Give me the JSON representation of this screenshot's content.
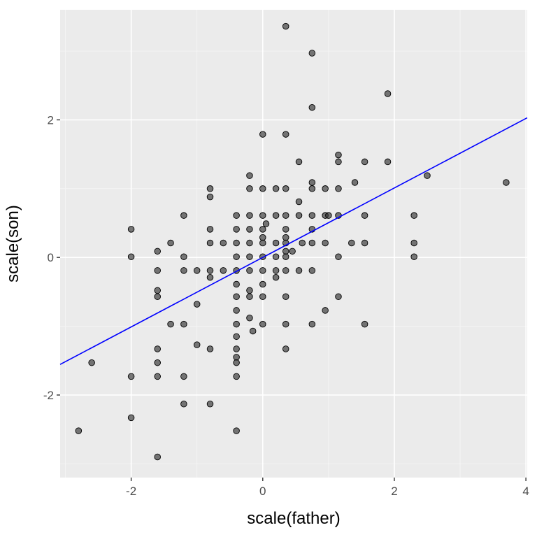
{
  "chart_data": {
    "type": "scatter",
    "title": "",
    "xlabel": "scale(father)",
    "ylabel": "scale(son)",
    "xlim": [
      -3.08,
      4.02
    ],
    "ylim": [
      -3.2,
      3.6
    ],
    "x_ticks": [
      -2,
      0,
      2,
      4
    ],
    "y_ticks": [
      -2,
      0,
      2
    ],
    "x_tick_labels": [
      "-2",
      "0",
      "2",
      "4"
    ],
    "y_tick_labels": [
      "-2",
      "0",
      "2"
    ],
    "grid": true,
    "legend": "none",
    "colors": {
      "panel_background": "#ebebeb",
      "grid_major": "#ffffff",
      "grid_minor": "#f5f5f5",
      "point_fill": "#333333",
      "point_opacity": 0.65,
      "point_stroke": "#000000",
      "fit_line": "#0000ff"
    },
    "fit_line": {
      "intercept": 0.0,
      "slope": 0.505
    },
    "series": [
      {
        "points": [
          [
            -2.8,
            -2.52
          ],
          [
            -2.6,
            -1.53
          ],
          [
            -2.0,
            0.41
          ],
          [
            -2.0,
            0.01
          ],
          [
            -2.0,
            -1.73
          ],
          [
            -2.0,
            -2.33
          ],
          [
            -1.6,
            0.09
          ],
          [
            -1.6,
            -0.19
          ],
          [
            -1.6,
            -0.48
          ],
          [
            -1.6,
            -0.57
          ],
          [
            -1.6,
            -1.33
          ],
          [
            -1.6,
            -1.53
          ],
          [
            -1.6,
            -1.73
          ],
          [
            -1.6,
            -2.9
          ],
          [
            -1.4,
            0.21
          ],
          [
            -1.4,
            -0.97
          ],
          [
            -1.2,
            0.61
          ],
          [
            -1.2,
            0.01
          ],
          [
            -1.2,
            -0.19
          ],
          [
            -1.2,
            -0.97
          ],
          [
            -1.2,
            -1.73
          ],
          [
            -1.2,
            -2.13
          ],
          [
            -1.0,
            -0.19
          ],
          [
            -1.0,
            -0.68
          ],
          [
            -1.0,
            -1.27
          ],
          [
            -0.8,
            1.0
          ],
          [
            -0.8,
            0.88
          ],
          [
            -0.8,
            0.41
          ],
          [
            -0.8,
            0.21
          ],
          [
            -0.8,
            -0.19
          ],
          [
            -0.8,
            -0.29
          ],
          [
            -0.8,
            -1.33
          ],
          [
            -0.8,
            -2.13
          ],
          [
            -0.6,
            0.21
          ],
          [
            -0.6,
            -0.19
          ],
          [
            -0.4,
            0.61
          ],
          [
            -0.4,
            0.41
          ],
          [
            -0.4,
            0.21
          ],
          [
            -0.4,
            0.01
          ],
          [
            -0.4,
            -0.19
          ],
          [
            -0.4,
            -0.39
          ],
          [
            -0.4,
            -0.57
          ],
          [
            -0.4,
            -0.77
          ],
          [
            -0.4,
            -0.97
          ],
          [
            -0.4,
            -1.15
          ],
          [
            -0.4,
            -1.33
          ],
          [
            -0.4,
            -1.45
          ],
          [
            -0.4,
            -1.53
          ],
          [
            -0.4,
            -1.73
          ],
          [
            -0.4,
            -2.52
          ],
          [
            -0.2,
            1.19
          ],
          [
            -0.2,
            1.0
          ],
          [
            -0.2,
            0.61
          ],
          [
            -0.2,
            0.41
          ],
          [
            -0.2,
            0.21
          ],
          [
            -0.2,
            0.01
          ],
          [
            -0.2,
            -0.19
          ],
          [
            -0.2,
            -0.48
          ],
          [
            -0.2,
            -0.57
          ],
          [
            -0.2,
            -0.88
          ],
          [
            -0.15,
            -1.07
          ],
          [
            0.0,
            1.79
          ],
          [
            0.0,
            1.0
          ],
          [
            0.0,
            0.61
          ],
          [
            0.0,
            0.41
          ],
          [
            0.0,
            0.29
          ],
          [
            0.0,
            0.21
          ],
          [
            0.0,
            0.01
          ],
          [
            0.0,
            -0.19
          ],
          [
            0.0,
            -0.39
          ],
          [
            0.0,
            -0.57
          ],
          [
            0.0,
            -0.97
          ],
          [
            0.05,
            0.49
          ],
          [
            0.2,
            1.0
          ],
          [
            0.2,
            0.61
          ],
          [
            0.2,
            0.21
          ],
          [
            0.2,
            0.01
          ],
          [
            0.2,
            -0.19
          ],
          [
            0.2,
            -0.29
          ],
          [
            0.35,
            3.36
          ],
          [
            0.35,
            1.79
          ],
          [
            0.35,
            1.0
          ],
          [
            0.35,
            0.61
          ],
          [
            0.35,
            0.41
          ],
          [
            0.35,
            0.29
          ],
          [
            0.35,
            0.21
          ],
          [
            0.35,
            0.09
          ],
          [
            0.35,
            0.01
          ],
          [
            0.35,
            -0.19
          ],
          [
            0.35,
            -0.57
          ],
          [
            0.35,
            -0.97
          ],
          [
            0.35,
            -1.33
          ],
          [
            0.45,
            0.09
          ],
          [
            0.55,
            1.39
          ],
          [
            0.55,
            0.81
          ],
          [
            0.55,
            0.61
          ],
          [
            0.55,
            -0.19
          ],
          [
            0.6,
            0.21
          ],
          [
            0.75,
            2.97
          ],
          [
            0.75,
            2.18
          ],
          [
            0.75,
            1.09
          ],
          [
            0.75,
            1.0
          ],
          [
            0.75,
            0.61
          ],
          [
            0.75,
            0.41
          ],
          [
            0.75,
            0.21
          ],
          [
            0.75,
            -0.19
          ],
          [
            0.75,
            -0.97
          ],
          [
            0.95,
            1.0
          ],
          [
            0.95,
            0.61
          ],
          [
            0.95,
            0.21
          ],
          [
            0.95,
            -0.77
          ],
          [
            1.0,
            0.61
          ],
          [
            1.15,
            1.49
          ],
          [
            1.15,
            1.39
          ],
          [
            1.15,
            1.0
          ],
          [
            1.15,
            0.61
          ],
          [
            1.15,
            0.01
          ],
          [
            1.15,
            -0.57
          ],
          [
            1.35,
            0.21
          ],
          [
            1.4,
            1.09
          ],
          [
            1.55,
            1.39
          ],
          [
            1.55,
            0.61
          ],
          [
            1.55,
            0.21
          ],
          [
            1.55,
            -0.97
          ],
          [
            1.9,
            2.38
          ],
          [
            1.9,
            1.39
          ],
          [
            2.3,
            0.61
          ],
          [
            2.3,
            0.21
          ],
          [
            2.3,
            0.01
          ],
          [
            2.5,
            1.19
          ],
          [
            3.7,
            1.09
          ]
        ]
      }
    ]
  }
}
